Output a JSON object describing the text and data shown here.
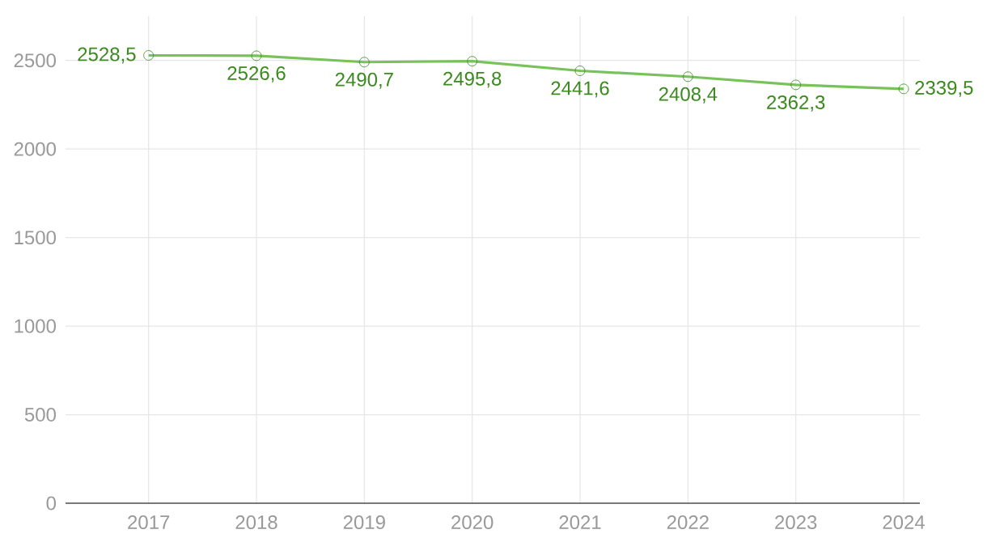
{
  "chart_data": {
    "type": "line",
    "categories": [
      "2017",
      "2018",
      "2019",
      "2020",
      "2021",
      "2022",
      "2023",
      "2024"
    ],
    "values": [
      2528.5,
      2526.6,
      2490.7,
      2495.8,
      2441.6,
      2408.4,
      2362.3,
      2339.5
    ],
    "value_labels": [
      "2528,5",
      "2526,6",
      "2490,7",
      "2495,8",
      "2441,6",
      "2408,4",
      "2362,3",
      "2339,5"
    ],
    "color": "#77c35a",
    "ylim": [
      0,
      2750
    ],
    "yticks": [
      0,
      500,
      1000,
      1500,
      2000,
      2500
    ],
    "grid": true,
    "marker": "circle",
    "line_style": "solid"
  }
}
